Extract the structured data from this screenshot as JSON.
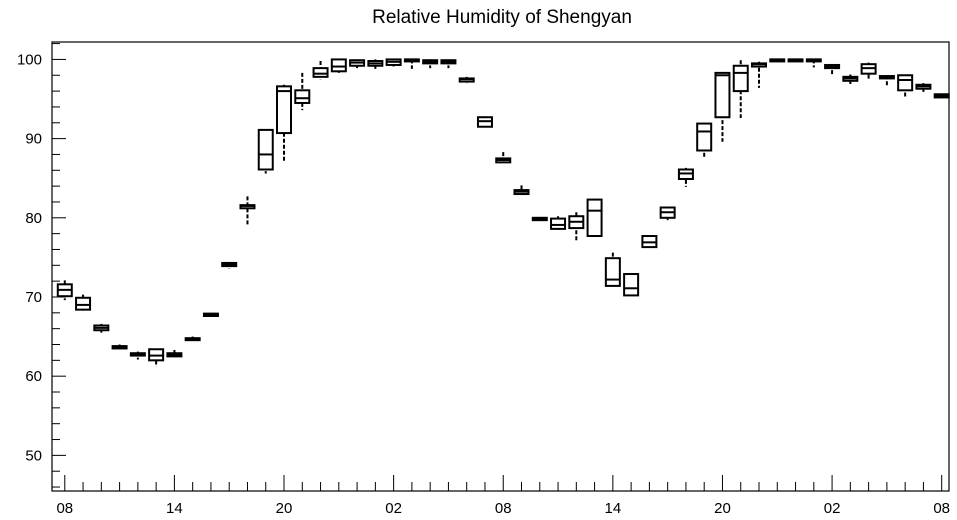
{
  "chart_data": {
    "type": "boxplot",
    "title": "Relative Humidity of Shengyan",
    "xlabel": "",
    "ylabel": "",
    "ylim": [
      45.5,
      102.2
    ],
    "y_ticks": [
      50,
      60,
      70,
      80,
      90,
      100
    ],
    "x_tick_labels": [
      "08",
      "14",
      "20",
      "02",
      "08",
      "14",
      "20",
      "02",
      "08"
    ],
    "x_tick_hours": [
      0,
      6,
      12,
      18,
      24,
      30,
      36,
      42,
      48
    ],
    "grid": false,
    "legend": "none",
    "series": [
      {
        "hour": 0,
        "min": 69.6,
        "q1": 70.1,
        "median": 70.9,
        "q3": 71.6,
        "max": 72.1
      },
      {
        "hour": 1,
        "min": 68.2,
        "q1": 68.4,
        "median": 69.0,
        "q3": 69.9,
        "max": 70.3
      },
      {
        "hour": 2,
        "min": 65.5,
        "q1": 65.8,
        "median": 66.1,
        "q3": 66.4,
        "max": 66.6
      },
      {
        "hour": 3,
        "min": 63.4,
        "q1": 63.5,
        "median": 63.7,
        "q3": 63.8,
        "max": 64.0
      },
      {
        "hour": 4,
        "min": 62.1,
        "q1": 62.6,
        "median": 62.8,
        "q3": 62.9,
        "max": 63.1
      },
      {
        "hour": 5,
        "min": 61.2,
        "q1": 62.0,
        "median": 62.6,
        "q3": 63.4,
        "max": 63.5
      },
      {
        "hour": 6,
        "min": 62.4,
        "q1": 62.5,
        "median": 62.7,
        "q3": 62.9,
        "max": 63.3
      },
      {
        "hour": 7,
        "min": 64.5,
        "q1": 64.6,
        "median": 64.7,
        "q3": 64.8,
        "max": 65.0
      },
      {
        "hour": 8,
        "min": 67.5,
        "q1": 67.6,
        "median": 67.7,
        "q3": 67.9,
        "max": 68.0
      },
      {
        "hour": 9,
        "min": 73.6,
        "q1": 73.9,
        "median": 74.1,
        "q3": 74.3,
        "max": 74.4
      },
      {
        "hour": 10,
        "min": 79.1,
        "q1": 81.2,
        "median": 81.5,
        "q3": 81.6,
        "max": 82.7
      },
      {
        "hour": 11,
        "min": 85.6,
        "q1": 86.1,
        "median": 88.0,
        "q3": 91.1,
        "max": 91.2
      },
      {
        "hour": 12,
        "min": 87.2,
        "q1": 90.7,
        "median": 96.0,
        "q3": 96.6,
        "max": 96.8
      },
      {
        "hour": 13,
        "min": 93.6,
        "q1": 94.5,
        "median": 95.1,
        "q3": 96.1,
        "max": 98.3
      },
      {
        "hour": 14,
        "min": 97.5,
        "q1": 97.8,
        "median": 98.2,
        "q3": 98.9,
        "max": 99.8
      },
      {
        "hour": 15,
        "min": 98.3,
        "q1": 98.5,
        "median": 99.1,
        "q3": 100.0,
        "max": 100.0
      },
      {
        "hour": 16,
        "min": 98.9,
        "q1": 99.2,
        "median": 99.6,
        "q3": 99.9,
        "max": 100.0
      },
      {
        "hour": 17,
        "min": 98.8,
        "q1": 99.2,
        "median": 99.5,
        "q3": 99.8,
        "max": 100.0
      },
      {
        "hour": 18,
        "min": 99.1,
        "q1": 99.3,
        "median": 99.7,
        "q3": 100.0,
        "max": 100.0
      },
      {
        "hour": 19,
        "min": 98.8,
        "q1": 100.0,
        "median": 100.0,
        "q3": 100.0,
        "max": 100.0
      },
      {
        "hour": 20,
        "min": 98.9,
        "q1": 99.5,
        "median": 99.7,
        "q3": 99.9,
        "max": 100.0
      },
      {
        "hour": 21,
        "min": 98.9,
        "q1": 99.5,
        "median": 99.7,
        "q3": 99.9,
        "max": 100.0
      },
      {
        "hour": 22,
        "min": 97.0,
        "q1": 97.2,
        "median": 97.5,
        "q3": 97.6,
        "max": 97.8
      },
      {
        "hour": 23,
        "min": 91.3,
        "q1": 91.5,
        "median": 92.2,
        "q3": 92.7,
        "max": 92.8
      },
      {
        "hour": 24,
        "min": 86.9,
        "q1": 87.0,
        "median": 87.3,
        "q3": 87.5,
        "max": 88.3
      },
      {
        "hour": 25,
        "min": 82.9,
        "q1": 83.0,
        "median": 83.3,
        "q3": 83.5,
        "max": 84.1
      },
      {
        "hour": 26,
        "min": 79.6,
        "q1": 79.7,
        "median": 79.8,
        "q3": 80.0,
        "max": 80.1
      },
      {
        "hour": 27,
        "min": 78.5,
        "q1": 78.6,
        "median": 79.1,
        "q3": 79.9,
        "max": 80.2
      },
      {
        "hour": 28,
        "min": 77.1,
        "q1": 78.7,
        "median": 79.5,
        "q3": 80.2,
        "max": 80.7
      },
      {
        "hour": 29,
        "min": 77.7,
        "q1": 77.7,
        "median": 80.9,
        "q3": 82.3,
        "max": 82.3
      },
      {
        "hour": 30,
        "min": 71.4,
        "q1": 71.4,
        "median": 72.2,
        "q3": 74.9,
        "max": 75.6
      },
      {
        "hour": 31,
        "min": 70.2,
        "q1": 70.2,
        "median": 71.1,
        "q3": 72.9,
        "max": 73.0
      },
      {
        "hour": 32,
        "min": 76.2,
        "q1": 76.3,
        "median": 76.9,
        "q3": 77.7,
        "max": 77.8
      },
      {
        "hour": 33,
        "min": 79.7,
        "q1": 80.0,
        "median": 80.7,
        "q3": 81.3,
        "max": 81.4
      },
      {
        "hour": 34,
        "min": 83.9,
        "q1": 84.9,
        "median": 85.6,
        "q3": 86.1,
        "max": 86.3
      },
      {
        "hour": 35,
        "min": 87.5,
        "q1": 88.5,
        "median": 90.9,
        "q3": 91.9,
        "max": 92.0
      },
      {
        "hour": 36,
        "min": 89.6,
        "q1": 92.7,
        "median": 98.0,
        "q3": 98.3,
        "max": 98.4
      },
      {
        "hour": 37,
        "min": 92.6,
        "q1": 96.0,
        "median": 98.3,
        "q3": 99.2,
        "max": 99.9
      },
      {
        "hour": 38,
        "min": 96.4,
        "q1": 99.1,
        "median": 99.4,
        "q3": 99.5,
        "max": 99.7
      },
      {
        "hour": 39,
        "min": 100.0,
        "q1": 100.0,
        "median": 100.0,
        "q3": 100.0,
        "max": 100.0
      },
      {
        "hour": 40,
        "min": 100.0,
        "q1": 100.0,
        "median": 100.0,
        "q3": 100.0,
        "max": 100.0
      },
      {
        "hour": 41,
        "min": 99.0,
        "q1": 100.0,
        "median": 100.0,
        "q3": 100.0,
        "max": 100.0
      },
      {
        "hour": 42,
        "min": 98.0,
        "q1": 98.9,
        "median": 99.1,
        "q3": 99.3,
        "max": 99.4
      },
      {
        "hour": 43,
        "min": 96.9,
        "q1": 97.3,
        "median": 97.6,
        "q3": 97.8,
        "max": 98.1
      },
      {
        "hour": 44,
        "min": 97.5,
        "q1": 98.2,
        "median": 98.9,
        "q3": 99.4,
        "max": 99.6
      },
      {
        "hour": 45,
        "min": 96.6,
        "q1": 97.6,
        "median": 97.8,
        "q3": 97.9,
        "max": 98.0
      },
      {
        "hour": 46,
        "min": 95.2,
        "q1": 96.1,
        "median": 97.4,
        "q3": 98.0,
        "max": 98.1
      },
      {
        "hour": 47,
        "min": 95.9,
        "q1": 96.3,
        "median": 96.6,
        "q3": 96.8,
        "max": 97.0
      },
      {
        "hour": 48,
        "min": 95.0,
        "q1": 95.2,
        "median": 95.4,
        "q3": 95.6,
        "max": 95.7
      }
    ]
  }
}
